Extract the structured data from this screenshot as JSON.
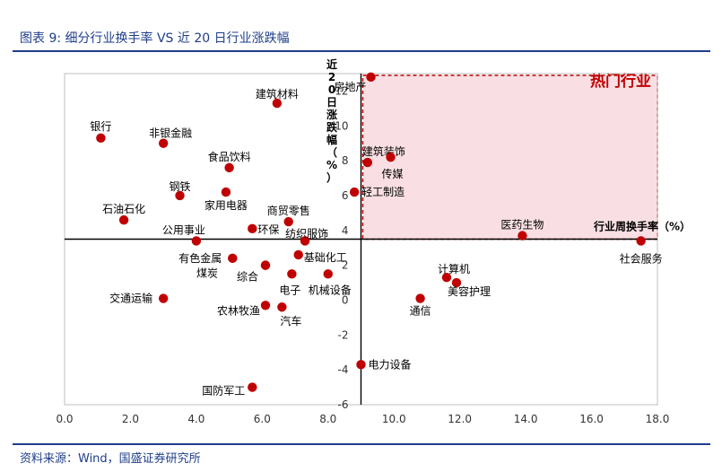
{
  "header": {
    "title": "图表 9:  细分行业换手率 VS 近 20 日行业涨跌幅"
  },
  "footer": {
    "source": "资料来源：Wind，国盛证券研究所"
  },
  "chart_data": {
    "type": "scatter",
    "title": "",
    "xlabel": "行业周换手率（%）",
    "ylabel": "近20日涨跌幅（%）",
    "xlim": [
      0,
      18
    ],
    "ylim": [
      -6,
      13
    ],
    "x_ticks": [
      "0.0",
      "2.0",
      "4.0",
      "6.0",
      "8.0",
      "10.0",
      "12.0",
      "14.0",
      "16.0",
      "18.0"
    ],
    "y_ticks": [
      "-6",
      "-4",
      "-2",
      "0",
      "2",
      "4",
      "6",
      "8",
      "10",
      "12"
    ],
    "highlight_label": "热门行业",
    "highlight_region": {
      "x": [
        9.0,
        18.0
      ],
      "y": [
        3.5,
        13.0
      ]
    },
    "colors": {
      "point": "#c00000",
      "highlight_fill": "#f9dfe3",
      "highlight_border": "#c00000",
      "brand": "#1f3e8a"
    },
    "points": [
      {
        "name": "房地产",
        "x": 9.3,
        "y": 12.8
      },
      {
        "name": "建筑材料",
        "x": 6.45,
        "y": 11.3
      },
      {
        "name": "银行",
        "x": 1.1,
        "y": 9.3
      },
      {
        "name": "非银金融",
        "x": 3.0,
        "y": 9.0
      },
      {
        "name": "建筑装饰",
        "x": 9.2,
        "y": 7.9
      },
      {
        "name": "传媒",
        "x": 9.9,
        "y": 8.2
      },
      {
        "name": "食品饮料",
        "x": 5.0,
        "y": 7.6
      },
      {
        "name": "钢铁",
        "x": 3.5,
        "y": 6.0
      },
      {
        "name": "家用电器",
        "x": 4.9,
        "y": 6.2
      },
      {
        "name": "轻工制造",
        "x": 8.8,
        "y": 6.2
      },
      {
        "name": "石油石化",
        "x": 1.8,
        "y": 4.6
      },
      {
        "name": "环保",
        "x": 5.7,
        "y": 4.1
      },
      {
        "name": "商贸零售",
        "x": 6.8,
        "y": 4.5
      },
      {
        "name": "医药生物",
        "x": 13.9,
        "y": 3.7
      },
      {
        "name": "社会服务",
        "x": 17.5,
        "y": 3.4
      },
      {
        "name": "公用事业",
        "x": 4.0,
        "y": 3.4
      },
      {
        "name": "纺织服饰",
        "x": 7.3,
        "y": 3.4
      },
      {
        "name": "基础化工",
        "x": 7.1,
        "y": 2.6
      },
      {
        "name": "有色金属",
        "x": 5.1,
        "y": 2.4
      },
      {
        "name": "煤炭",
        "x": 6.1,
        "y": 2.0
      },
      {
        "name": "综合",
        "x": 6.1,
        "y": 2.0
      },
      {
        "name": "电子",
        "x": 6.9,
        "y": 1.5
      },
      {
        "name": "机械设备",
        "x": 8.0,
        "y": 1.5
      },
      {
        "name": "计算机",
        "x": 11.6,
        "y": 1.3
      },
      {
        "name": "美容护理",
        "x": 11.9,
        "y": 1.0
      },
      {
        "name": "交通运输",
        "x": 3.0,
        "y": 0.1
      },
      {
        "name": "通信",
        "x": 10.8,
        "y": 0.1
      },
      {
        "name": "农林牧渔",
        "x": 6.1,
        "y": -0.3
      },
      {
        "name": "汽车",
        "x": 6.6,
        "y": -0.4
      },
      {
        "name": "电力设备",
        "x": 9.0,
        "y": -3.7
      },
      {
        "name": "国防军工",
        "x": 5.7,
        "y": -5.0
      }
    ]
  }
}
